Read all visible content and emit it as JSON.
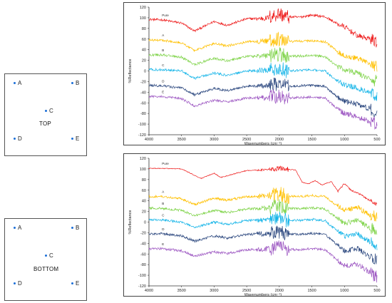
{
  "panels": [
    {
      "label": "TOP",
      "points": [
        "A",
        "B",
        "C",
        "D",
        "E"
      ]
    },
    {
      "label": "BOTTOM",
      "points": [
        "A",
        "B",
        "C",
        "D",
        "E"
      ]
    }
  ],
  "chart_data": [
    {
      "type": "line",
      "xlabel": "Wavenumbers (cm⁻¹)",
      "ylabel": "%Reflectance",
      "xlim": [
        4000,
        500
      ],
      "ylim": [
        -120,
        120
      ],
      "xticks": [
        4000,
        3500,
        3000,
        2500,
        2000,
        1500,
        1000,
        500
      ],
      "yticks": [
        120,
        100,
        80,
        60,
        40,
        20,
        0,
        -20,
        -40,
        -60,
        -80,
        -100,
        -120
      ],
      "grid": false,
      "series": [
        {
          "name": "Pure",
          "color": "#ee1c1c",
          "x": [
            4000,
            3800,
            3500,
            3300,
            3000,
            2800,
            2500,
            2200,
            2000,
            1900,
            1700,
            1500,
            1300,
            1100,
            1000,
            800,
            600,
            500
          ],
          "y": [
            97,
            96,
            90,
            75,
            93,
            86,
            98,
            99,
            108,
            102,
            101,
            105,
            102,
            88,
            83,
            66,
            60,
            55
          ]
        },
        {
          "name": "A",
          "color": "#ffc000",
          "x": [
            4000,
            3800,
            3500,
            3300,
            3000,
            2800,
            2500,
            2200,
            2000,
            1900,
            1700,
            1500,
            1300,
            1100,
            1000,
            800,
            600,
            500
          ],
          "y": [
            58,
            58,
            53,
            38,
            52,
            47,
            55,
            56,
            60,
            55,
            56,
            57,
            55,
            36,
            28,
            24,
            12,
            8
          ]
        },
        {
          "name": "B",
          "color": "#7ed348",
          "x": [
            4000,
            3800,
            3500,
            3300,
            3000,
            2800,
            2500,
            2200,
            2000,
            1900,
            1700,
            1500,
            1300,
            1100,
            1000,
            800,
            600,
            500
          ],
          "y": [
            30,
            30,
            26,
            12,
            24,
            19,
            27,
            28,
            32,
            27,
            28,
            29,
            27,
            8,
            2,
            -4,
            -16,
            -20
          ]
        },
        {
          "name": "C",
          "color": "#13b4e8",
          "x": [
            4000,
            3800,
            3500,
            3300,
            3000,
            2800,
            2500,
            2200,
            2000,
            1900,
            1700,
            1500,
            1300,
            1100,
            1000,
            800,
            600,
            500
          ],
          "y": [
            3,
            2,
            0,
            -14,
            -4,
            -8,
            0,
            1,
            5,
            0,
            1,
            2,
            0,
            -20,
            -26,
            -32,
            -42,
            -46
          ]
        },
        {
          "name": "D",
          "color": "#24417a",
          "x": [
            4000,
            3800,
            3500,
            3300,
            3000,
            2800,
            2500,
            2200,
            2000,
            1900,
            1700,
            1500,
            1300,
            1100,
            1000,
            800,
            600,
            500
          ],
          "y": [
            -27,
            -28,
            -32,
            -45,
            -33,
            -37,
            -29,
            -28,
            -24,
            -29,
            -28,
            -27,
            -29,
            -50,
            -57,
            -62,
            -72,
            -76
          ]
        },
        {
          "name": "E",
          "color": "#9b54c1",
          "x": [
            4000,
            3800,
            3500,
            3300,
            3000,
            2800,
            2500,
            2200,
            2000,
            1900,
            1700,
            1500,
            1300,
            1100,
            1000,
            800,
            600,
            500
          ],
          "y": [
            -48,
            -48,
            -52,
            -66,
            -55,
            -58,
            -51,
            -50,
            -46,
            -51,
            -50,
            -49,
            -51,
            -72,
            -80,
            -86,
            -96,
            -100
          ]
        }
      ]
    },
    {
      "type": "line",
      "xlabel": "Wavenumbers (cm⁻¹)",
      "ylabel": "%Reflectance",
      "xlim": [
        4000,
        500
      ],
      "ylim": [
        -120,
        120
      ],
      "xticks": [
        4000,
        3500,
        3000,
        2500,
        2000,
        1500,
        1000,
        500
      ],
      "yticks": [
        120,
        100,
        80,
        60,
        40,
        20,
        0,
        -20,
        -40,
        -60,
        -80,
        -100,
        -120
      ],
      "grid": false,
      "series": [
        {
          "name": "Pure",
          "color": "#ee1c1c",
          "x": [
            4000,
            3800,
            3500,
            3300,
            3200,
            3000,
            2900,
            2500,
            2100,
            2000,
            1750,
            1650,
            1550,
            1450,
            1350,
            1200,
            1100,
            1000,
            900,
            800,
            600,
            500
          ],
          "y": [
            101,
            101,
            100,
            88,
            82,
            92,
            84,
            97,
            99,
            101,
            98,
            75,
            72,
            78,
            70,
            76,
            58,
            72,
            60,
            55,
            40,
            33
          ]
        },
        {
          "name": "A",
          "color": "#ffc000",
          "x": [
            4000,
            3800,
            3500,
            3300,
            3000,
            2800,
            2500,
            2200,
            2000,
            1900,
            1700,
            1500,
            1300,
            1100,
            1000,
            800,
            600,
            500
          ],
          "y": [
            48,
            48,
            44,
            33,
            45,
            41,
            48,
            49,
            53,
            49,
            48,
            50,
            48,
            30,
            22,
            28,
            12,
            8
          ]
        },
        {
          "name": "B",
          "color": "#7ed348",
          "x": [
            4000,
            3800,
            3500,
            3300,
            3000,
            2800,
            2500,
            2200,
            2000,
            1900,
            1700,
            1500,
            1300,
            1100,
            1000,
            800,
            600,
            500
          ],
          "y": [
            26,
            26,
            22,
            12,
            22,
            18,
            25,
            26,
            30,
            26,
            25,
            27,
            25,
            6,
            -2,
            3,
            -12,
            -16
          ]
        },
        {
          "name": "C",
          "color": "#13b4e8",
          "x": [
            4000,
            3800,
            3500,
            3300,
            3000,
            2800,
            2500,
            2200,
            2000,
            1900,
            1700,
            1500,
            1300,
            1100,
            1000,
            800,
            600,
            500
          ],
          "y": [
            4,
            4,
            0,
            -10,
            0,
            -4,
            3,
            4,
            8,
            4,
            3,
            5,
            3,
            -18,
            -26,
            -22,
            -38,
            -42
          ]
        },
        {
          "name": "D",
          "color": "#24417a",
          "x": [
            4000,
            3800,
            3500,
            3300,
            3000,
            2800,
            2500,
            2200,
            2000,
            1900,
            1700,
            1500,
            1300,
            1100,
            1000,
            800,
            600,
            500
          ],
          "y": [
            -22,
            -22,
            -26,
            -36,
            -26,
            -30,
            -23,
            -22,
            -18,
            -22,
            -23,
            -21,
            -23,
            -44,
            -54,
            -50,
            -66,
            -72
          ]
        },
        {
          "name": "E",
          "color": "#9b54c1",
          "x": [
            4000,
            3800,
            3500,
            3300,
            3000,
            2800,
            2500,
            2200,
            2000,
            1900,
            1700,
            1500,
            1300,
            1100,
            1000,
            800,
            600,
            500
          ],
          "y": [
            -50,
            -50,
            -54,
            -64,
            -56,
            -59,
            -52,
            -51,
            -47,
            -51,
            -52,
            -50,
            -52,
            -72,
            -82,
            -78,
            -96,
            -104
          ]
        }
      ]
    }
  ]
}
